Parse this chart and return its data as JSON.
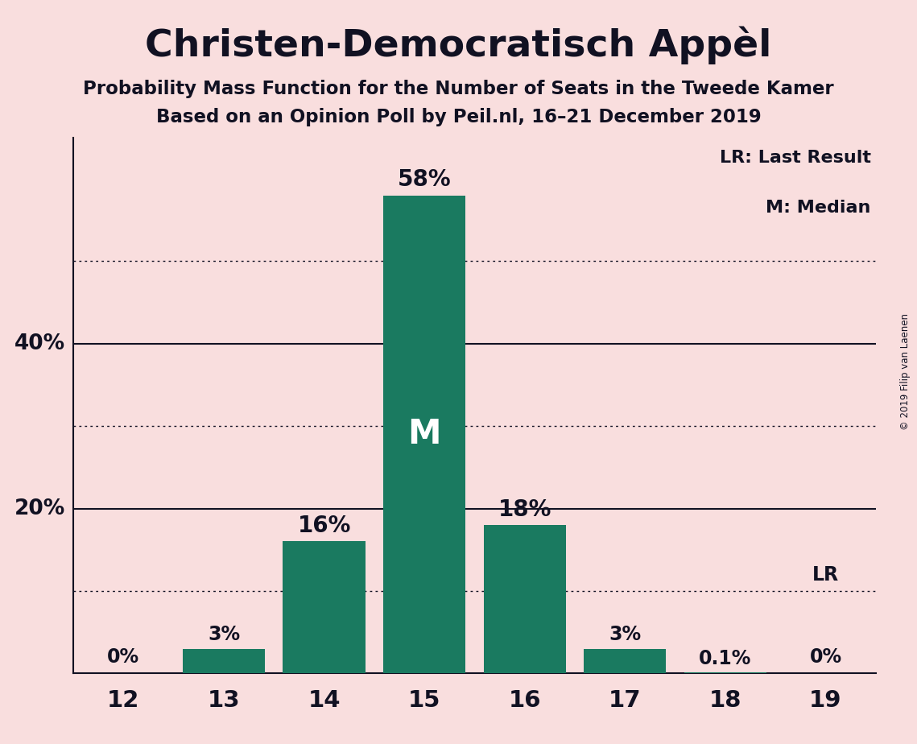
{
  "title": "Christen-Democratisch Appèl",
  "subtitle1": "Probability Mass Function for the Number of Seats in the Tweede Kamer",
  "subtitle2": "Based on an Opinion Poll by Peil.nl, 16–21 December 2019",
  "copyright": "© 2019 Filip van Laenen",
  "categories": [
    12,
    13,
    14,
    15,
    16,
    17,
    18,
    19
  ],
  "values": [
    0.0,
    3.0,
    16.0,
    58.0,
    18.0,
    3.0,
    0.1,
    0.0
  ],
  "labels": [
    "0%",
    "3%",
    "16%",
    "58%",
    "18%",
    "3%",
    "0.1%",
    "0%"
  ],
  "bar_color": "#1a7a60",
  "background_color": "#f9dede",
  "text_color": "#111122",
  "median_bar": 15,
  "lr_bar": 19,
  "lr_label": "LR",
  "median_label": "M",
  "legend_lr": "LR: Last Result",
  "legend_m": "M: Median",
  "major_gridlines": [
    20,
    40
  ],
  "dotted_gridlines": [
    10,
    30,
    50
  ],
  "lr_line_y": 10,
  "ylim": [
    0,
    65
  ],
  "xlim": [
    11.5,
    19.5
  ]
}
